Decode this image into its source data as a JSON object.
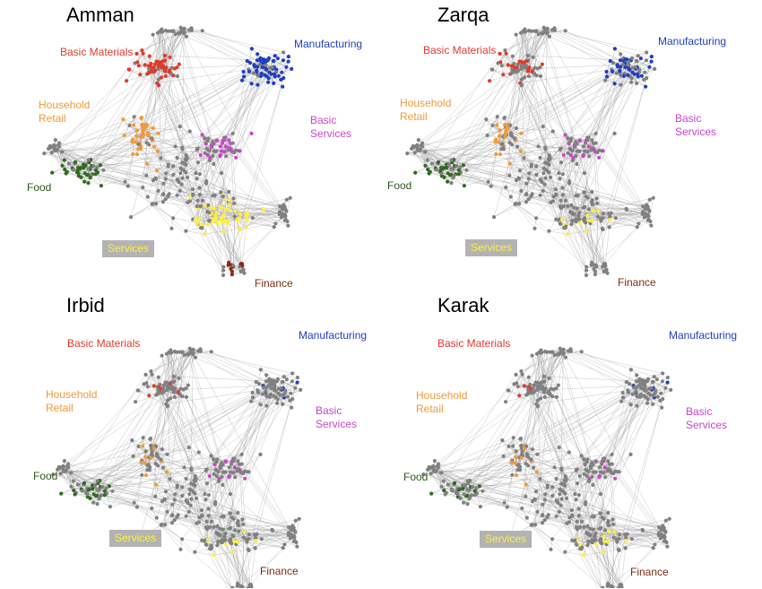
{
  "colors": {
    "edge": "#9a9a9a",
    "node": "#808080",
    "basic_materials": "#e03a2c",
    "manufacturing": "#1f3fbf",
    "household_retail": "#f09a3a",
    "basic_services": "#cc44cc",
    "food": "#2e6b1f",
    "services": "#ffee44",
    "finance": "#8b2a1a"
  },
  "panels": [
    {
      "title": "Amman",
      "labels": {
        "basic_materials": "Basic Materials",
        "manufacturing": "Manufacturing",
        "household_retail": [
          "Household",
          "Retail"
        ],
        "basic_services": [
          "Basic",
          "Services"
        ],
        "food": "Food",
        "services": "Services",
        "finance": "Finance"
      },
      "intensity": {
        "basic_materials": 0.9,
        "manufacturing": 0.9,
        "household_retail": 0.8,
        "basic_services": 0.8,
        "food": 0.8,
        "services": 0.8,
        "finance": 0.7
      }
    },
    {
      "title": "Zarqa",
      "labels": {
        "basic_materials": "Basic Materials",
        "manufacturing": "Manufacturing",
        "household_retail": [
          "Household",
          "Retail"
        ],
        "basic_services": [
          "Basic",
          "Services"
        ],
        "food": "Food",
        "services": "Services",
        "finance": "Finance"
      },
      "intensity": {
        "basic_materials": 0.4,
        "manufacturing": 0.5,
        "household_retail": 0.35,
        "basic_services": 0.4,
        "food": 0.5,
        "services": 0.15,
        "finance": 0.0
      }
    },
    {
      "title": "Irbid",
      "labels": {
        "basic_materials": "Basic Materials",
        "manufacturing": "Manufacturing",
        "household_retail": [
          "Household",
          "Retail"
        ],
        "basic_services": [
          "Basic",
          "Services"
        ],
        "food": "Food",
        "services": "Services",
        "finance": "Finance"
      },
      "intensity": {
        "basic_materials": 0.15,
        "manufacturing": 0.15,
        "household_retail": 0.2,
        "basic_services": 0.25,
        "food": 0.3,
        "services": 0.12,
        "finance": 0.0
      }
    },
    {
      "title": "Karak",
      "labels": {
        "basic_materials": "Basic Materials",
        "manufacturing": "Manufacturing",
        "household_retail": [
          "Household",
          "Retail"
        ],
        "basic_services": [
          "Basic",
          "Services"
        ],
        "food": "Food",
        "services": "Services",
        "finance": "Finance"
      },
      "intensity": {
        "basic_materials": 0.12,
        "manufacturing": 0.12,
        "household_retail": 0.15,
        "basic_services": 0.12,
        "food": 0.2,
        "services": 0.15,
        "finance": 0.0
      }
    }
  ]
}
